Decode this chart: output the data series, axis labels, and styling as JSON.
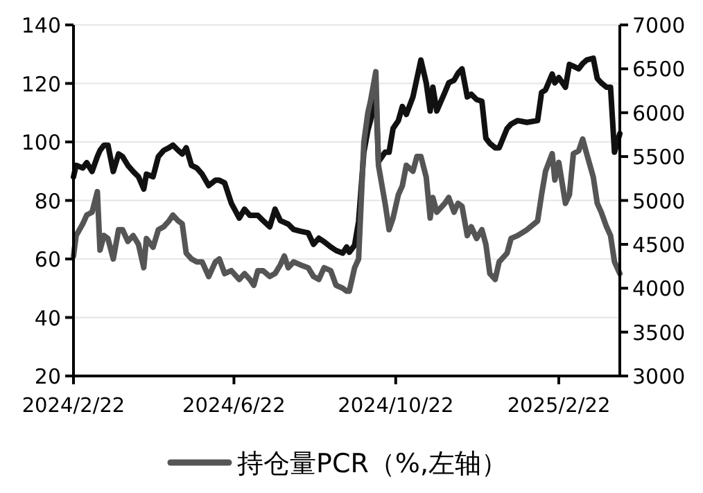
{
  "chart_data": {
    "type": "line",
    "x": [
      "2024-02-22",
      "2024-02-24",
      "2024-02-29",
      "2024-03-03",
      "2024-03-07",
      "2024-03-11",
      "2024-03-13",
      "2024-03-16",
      "2024-03-19",
      "2024-03-23",
      "2024-03-27",
      "2024-03-30",
      "2024-04-03",
      "2024-04-07",
      "2024-04-11",
      "2024-04-15",
      "2024-04-17",
      "2024-04-22",
      "2024-04-26",
      "2024-04-30",
      "2024-05-04",
      "2024-05-07",
      "2024-05-11",
      "2024-05-14",
      "2024-05-17",
      "2024-05-21",
      "2024-05-25",
      "2024-05-29",
      "2024-06-03",
      "2024-06-08",
      "2024-06-11",
      "2024-06-15",
      "2024-06-20",
      "2024-06-26",
      "2024-06-30",
      "2024-07-04",
      "2024-07-07",
      "2024-07-10",
      "2024-07-14",
      "2024-07-19",
      "2024-07-23",
      "2024-07-27",
      "2024-07-30",
      "2024-08-02",
      "2024-08-06",
      "2024-08-11",
      "2024-08-17",
      "2024-08-21",
      "2024-08-25",
      "2024-08-29",
      "2024-09-03",
      "2024-09-07",
      "2024-09-12",
      "2024-09-15",
      "2024-09-17",
      "2024-09-21",
      "2024-09-24",
      "2024-09-28",
      "2024-10-01",
      "2024-10-03",
      "2024-10-07",
      "2024-10-09",
      "2024-10-14",
      "2024-10-17",
      "2024-10-20",
      "2024-10-24",
      "2024-10-27",
      "2024-10-30",
      "2024-11-04",
      "2024-11-07",
      "2024-11-10",
      "2024-11-14",
      "2024-11-17",
      "2024-11-19",
      "2024-11-22",
      "2024-11-28",
      "2024-12-01",
      "2024-12-05",
      "2024-12-08",
      "2024-12-11",
      "2024-12-15",
      "2024-12-18",
      "2024-12-22",
      "2024-12-26",
      "2024-12-29",
      "2025-01-01",
      "2025-01-05",
      "2025-01-08",
      "2025-01-14",
      "2025-01-17",
      "2025-01-22",
      "2025-01-29",
      "2025-02-06",
      "2025-02-09",
      "2025-02-12",
      "2025-02-17",
      "2025-02-19",
      "2025-02-22",
      "2025-02-27",
      "2025-03-02",
      "2025-03-05",
      "2025-03-09",
      "2025-03-12",
      "2025-03-15",
      "2025-03-20",
      "2025-03-23",
      "2025-03-26",
      "2025-03-30",
      "2025-04-02",
      "2025-04-05",
      "2025-04-09"
    ],
    "series": [
      {
        "color": "#111111",
        "axis": "y2",
        "values": [
          5270,
          5400,
          5370,
          5430,
          5330,
          5500,
          5570,
          5630,
          5630,
          5330,
          5530,
          5500,
          5400,
          5330,
          5270,
          5130,
          5300,
          5270,
          5500,
          5570,
          5600,
          5630,
          5570,
          5530,
          5600,
          5400,
          5370,
          5300,
          5170,
          5230,
          5230,
          5200,
          4970,
          4800,
          4900,
          4830,
          4830,
          4830,
          4770,
          4700,
          4900,
          4770,
          4750,
          4730,
          4670,
          4650,
          4630,
          4500,
          4570,
          4530,
          4470,
          4430,
          4400,
          4470,
          4410,
          4490,
          4760,
          5550,
          5800,
          5910,
          6230,
          5440,
          5550,
          5550,
          5820,
          5910,
          6070,
          5980,
          6180,
          6390,
          6600,
          6340,
          6020,
          6290,
          6020,
          6230,
          6340,
          6370,
          6450,
          6500,
          6180,
          6210,
          6150,
          6130,
          5710,
          5650,
          5600,
          5600,
          5820,
          5870,
          5910,
          5890,
          5910,
          6230,
          6260,
          6440,
          6340,
          6400,
          6290,
          6550,
          6530,
          6500,
          6560,
          6600,
          6620,
          6390,
          6340,
          6290,
          6290,
          5550,
          5760
        ]
      },
      {
        "name": "持仓量PCR（%,左轴）",
        "color": "#555555",
        "values": [
          61,
          68,
          72,
          75,
          76,
          83,
          63,
          68,
          67,
          60,
          70,
          70,
          66,
          68,
          65,
          57,
          67,
          64,
          70,
          71,
          73,
          75,
          73,
          72,
          62,
          60,
          59,
          59,
          54,
          59,
          60,
          55,
          56,
          53,
          55,
          53,
          51,
          56,
          56,
          54,
          55,
          58,
          61,
          57,
          59,
          58,
          57,
          54,
          53,
          57,
          56,
          51,
          50,
          49,
          49,
          57,
          60,
          100,
          110,
          114,
          124,
          92,
          79,
          70,
          74,
          82,
          85,
          92,
          90,
          95,
          95,
          88,
          74,
          81,
          76,
          79,
          81,
          76,
          79,
          78,
          68,
          71,
          67,
          70,
          65,
          55,
          53,
          59,
          62,
          67,
          68,
          70,
          73,
          82,
          90,
          96,
          87,
          93,
          79,
          82,
          96,
          97,
          101,
          96,
          88,
          79,
          76,
          71,
          68,
          59,
          55
        ]
      }
    ],
    "xlim": [
      "2024-02-22",
      "2025-04-09"
    ],
    "xticks": [
      {
        "value": "2024-02-22",
        "label": "2024/2/22"
      },
      {
        "value": "2024-06-22",
        "label": "2024/6/22"
      },
      {
        "value": "2024-10-22",
        "label": "2024/10/22"
      },
      {
        "value": "2025-02-22",
        "label": "2025/2/22"
      }
    ],
    "ylim": [
      20,
      140
    ],
    "yticks": [
      20,
      40,
      60,
      80,
      100,
      120,
      140
    ],
    "y2lim": [
      3000,
      7000
    ],
    "y2ticks": [
      3000,
      3500,
      4000,
      4500,
      5000,
      5500,
      6000,
      6500,
      7000
    ],
    "grid": "y",
    "legend": "bottom"
  }
}
